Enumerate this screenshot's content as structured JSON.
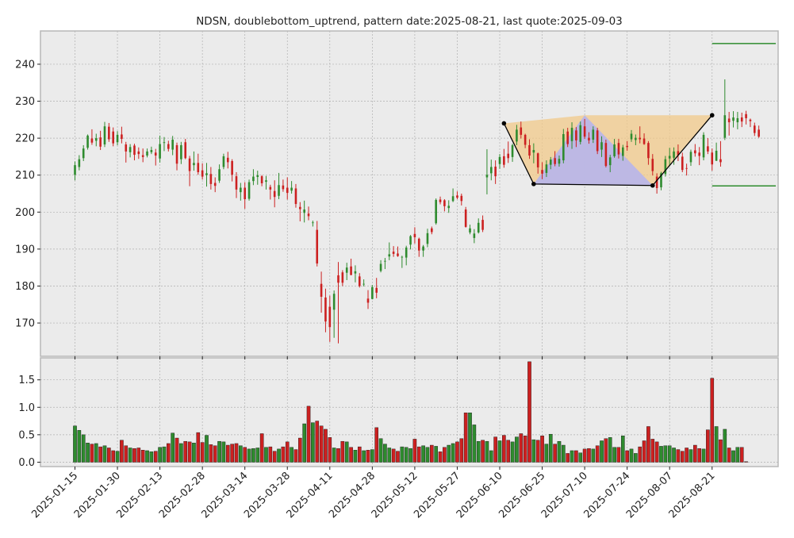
{
  "chart_data": {
    "type": "candlestick",
    "title": "NDSN, doublebottom_uptrend, pattern date:2025-08-21, last quote:2025-09-03",
    "price_axis": {
      "ylim": [
        161,
        249
      ],
      "ticks": [
        170,
        180,
        190,
        200,
        210,
        220,
        230,
        240
      ]
    },
    "volume_axis": {
      "ylim": [
        -0.08,
        1.9
      ],
      "ticks": [
        0.0,
        0.5,
        1.0,
        1.5
      ]
    },
    "x_tick_labels": [
      "2025-01-15",
      "2025-01-30",
      "2025-02-13",
      "2025-02-28",
      "2025-03-14",
      "2025-03-28",
      "2025-04-11",
      "2025-04-28",
      "2025-05-12",
      "2025-05-27",
      "2025-06-10",
      "2025-06-25",
      "2025-07-10",
      "2025-07-24",
      "2025-08-07",
      "2025-08-21"
    ],
    "x_tick_index": [
      0,
      10,
      20,
      30,
      40,
      50,
      60,
      70,
      80,
      90,
      100,
      110,
      120,
      130,
      140,
      150
    ],
    "grid": true,
    "colors": {
      "up": "#2e8b2e",
      "down": "#cc2020",
      "panel_bg": "#ebebeb",
      "grid": "#b0b0b0",
      "pattern_line": "#000000",
      "triangle_orange": "#f2c98a",
      "triangle_blue": "#b4b4f0",
      "level_line": "#0a7a0a"
    },
    "candles": [
      [
        210.1,
        213.7,
        208.6,
        212.7
      ],
      [
        212.2,
        215.4,
        211.3,
        214.3
      ],
      [
        214.6,
        218.1,
        213.8,
        217.2
      ],
      [
        217.4,
        221.0,
        216.9,
        220.7
      ],
      [
        219.9,
        222.4,
        218.2,
        218.8
      ],
      [
        219.3,
        221.2,
        217.8,
        220.0
      ],
      [
        220.2,
        222.0,
        216.8,
        217.7
      ],
      [
        218.3,
        224.4,
        217.6,
        223.2
      ],
      [
        223.1,
        224.1,
        219.0,
        219.7
      ],
      [
        221.8,
        222.9,
        217.8,
        218.6
      ],
      [
        218.9,
        221.9,
        218.1,
        220.9
      ],
      [
        221.0,
        223.1,
        218.6,
        219.8
      ],
      [
        218.3,
        219.0,
        213.4,
        216.4
      ],
      [
        216.2,
        218.4,
        214.8,
        217.6
      ],
      [
        218.0,
        218.5,
        214.0,
        215.5
      ],
      [
        216.4,
        217.5,
        214.4,
        215.7
      ],
      [
        215.4,
        217.2,
        213.5,
        214.9
      ],
      [
        215.3,
        217.2,
        214.8,
        216.4
      ],
      [
        216.2,
        217.7,
        215.7,
        216.8
      ],
      [
        216.1,
        217.1,
        212.6,
        215.3
      ],
      [
        214.5,
        220.7,
        213.4,
        218.4
      ],
      [
        218.7,
        220.3,
        216.5,
        218.9
      ],
      [
        218.4,
        219.3,
        216.4,
        217.1
      ],
      [
        216.9,
        220.6,
        215.4,
        219.6
      ],
      [
        218.1,
        218.8,
        211.3,
        213.1
      ],
      [
        214.3,
        219.0,
        213.0,
        218.1
      ],
      [
        218.9,
        219.8,
        214.3,
        214.6
      ],
      [
        214.5,
        215.2,
        207.0,
        211.1
      ],
      [
        212.7,
        216.4,
        211.2,
        213.3
      ],
      [
        213.3,
        215.8,
        210.1,
        210.8
      ],
      [
        211.3,
        213.2,
        208.8,
        209.6
      ],
      [
        210.0,
        213.3,
        206.9,
        210.5
      ],
      [
        210.3,
        212.2,
        206.1,
        207.6
      ],
      [
        207.9,
        209.4,
        205.4,
        207.1
      ],
      [
        208.5,
        212.9,
        207.9,
        211.6
      ],
      [
        212.2,
        215.8,
        211.6,
        215.1
      ],
      [
        214.7,
        216.3,
        211.8,
        213.5
      ],
      [
        213.8,
        214.3,
        208.3,
        210.1
      ],
      [
        209.7,
        210.8,
        203.8,
        206.1
      ],
      [
        205.4,
        207.9,
        203.1,
        206.6
      ],
      [
        206.6,
        208.1,
        200.9,
        203.5
      ],
      [
        203.6,
        208.8,
        203.1,
        208.1
      ],
      [
        208.4,
        211.6,
        207.3,
        209.6
      ],
      [
        209.5,
        211.2,
        207.4,
        210.0
      ],
      [
        209.7,
        210.0,
        207.0,
        207.8
      ],
      [
        208.2,
        209.8,
        206.1,
        208.6
      ],
      [
        206.8,
        207.4,
        203.4,
        206.1
      ],
      [
        205.7,
        208.6,
        201.3,
        204.1
      ],
      [
        204.4,
        210.6,
        203.5,
        207.3
      ],
      [
        207.2,
        208.8,
        205.5,
        206.2
      ],
      [
        206.6,
        209.4,
        203.4,
        205.2
      ],
      [
        205.8,
        208.4,
        205.0,
        206.6
      ],
      [
        206.4,
        207.6,
        201.2,
        202.2
      ],
      [
        201.4,
        202.7,
        197.5,
        200.8
      ],
      [
        199.8,
        203.1,
        197.2,
        200.7
      ],
      [
        199.6,
        201.5,
        197.8,
        198.9
      ],
      [
        197.1,
        197.7,
        196.1,
        197.2
      ],
      [
        195.2,
        197.6,
        185.3,
        186.1
      ],
      [
        180.6,
        183.9,
        172.8,
        177.1
      ],
      [
        176.9,
        179.3,
        167.5,
        170.4
      ],
      [
        174.4,
        177.4,
        164.9,
        168.9
      ],
      [
        173.6,
        178.8,
        166.0,
        177.9
      ],
      [
        182.9,
        186.5,
        164.5,
        180.9
      ],
      [
        183.7,
        184.3,
        180.0,
        180.9
      ],
      [
        183.6,
        186.3,
        181.6,
        185.0
      ],
      [
        185.3,
        187.4,
        182.9,
        183.0
      ],
      [
        183.4,
        185.6,
        181.0,
        184.0
      ],
      [
        182.6,
        183.5,
        179.6,
        180.0
      ],
      [
        180.6,
        181.8,
        179.9,
        180.6
      ],
      [
        176.6,
        178.9,
        173.8,
        175.5
      ],
      [
        176.5,
        180.3,
        176.4,
        179.7
      ],
      [
        179.5,
        182.2,
        176.7,
        178.2
      ],
      [
        184.1,
        187.0,
        183.7,
        186.0
      ],
      [
        186.7,
        187.6,
        184.6,
        186.8
      ],
      [
        188.0,
        191.8,
        187.0,
        188.6
      ],
      [
        189.3,
        190.8,
        187.9,
        188.7
      ],
      [
        188.8,
        190.7,
        187.9,
        188.1
      ],
      [
        187.8,
        188.2,
        184.9,
        187.9
      ],
      [
        187.7,
        190.9,
        185.6,
        190.4
      ],
      [
        191.2,
        193.8,
        189.9,
        193.5
      ],
      [
        194.1,
        195.9,
        191.5,
        193.2
      ],
      [
        192.8,
        193.1,
        187.9,
        189.6
      ],
      [
        189.6,
        191.1,
        187.9,
        190.7
      ],
      [
        191.4,
        195.5,
        190.5,
        194.3
      ],
      [
        195.6,
        196.1,
        194.0,
        194.6
      ],
      [
        197.0,
        203.7,
        196.6,
        203.3
      ],
      [
        203.4,
        204.2,
        202.1,
        202.7
      ],
      [
        203.2,
        203.5,
        200.2,
        201.6
      ],
      [
        201.1,
        203.2,
        199.8,
        201.7
      ],
      [
        203.0,
        206.4,
        202.7,
        204.3
      ],
      [
        204.5,
        205.6,
        203.5,
        203.9
      ],
      [
        204.4,
        205.0,
        201.8,
        203.0
      ],
      [
        200.7,
        201.4,
        195.8,
        196.0
      ],
      [
        194.5,
        196.6,
        194.0,
        195.6
      ],
      [
        193.0,
        195.4,
        191.6,
        194.2
      ],
      [
        194.5,
        198.3,
        194.2,
        197.1
      ],
      [
        197.9,
        199.1,
        194.6,
        195.2
      ],
      [
        209.4,
        217.0,
        204.8,
        210.1
      ],
      [
        210.5,
        214.2,
        208.6,
        212.2
      ],
      [
        212.3,
        214.0,
        207.6,
        209.7
      ],
      [
        213.0,
        215.7,
        211.7,
        214.9
      ],
      [
        215.1,
        217.1,
        212.0,
        212.8
      ],
      [
        215.8,
        219.1,
        213.3,
        214.6
      ],
      [
        214.9,
        218.5,
        213.6,
        218.1
      ],
      [
        219.1,
        223.6,
        218.1,
        222.3
      ],
      [
        222.9,
        224.5,
        219.9,
        220.9
      ],
      [
        220.9,
        221.2,
        217.3,
        218.2
      ],
      [
        218.1,
        219.7,
        214.4,
        215.3
      ],
      [
        216.1,
        218.6,
        213.2,
        216.8
      ],
      [
        215.9,
        216.1,
        210.4,
        212.1
      ],
      [
        211.4,
        213.5,
        208.9,
        210.4
      ],
      [
        210.6,
        214.0,
        209.5,
        212.9
      ],
      [
        212.8,
        214.9,
        211.6,
        214.2
      ],
      [
        214.6,
        216.5,
        212.4,
        213.0
      ],
      [
        213.1,
        215.3,
        212.3,
        214.4
      ],
      [
        214.0,
        222.5,
        213.2,
        221.1
      ],
      [
        221.8,
        222.8,
        217.6,
        218.4
      ],
      [
        219.2,
        224.3,
        217.1,
        222.8
      ],
      [
        222.1,
        223.0,
        217.6,
        219.4
      ],
      [
        219.0,
        224.5,
        218.3,
        223.5
      ],
      [
        223.2,
        225.2,
        219.8,
        220.4
      ],
      [
        220.1,
        221.6,
        218.5,
        219.4
      ],
      [
        219.6,
        223.2,
        218.7,
        222.3
      ],
      [
        222.1,
        222.8,
        215.7,
        216.5
      ],
      [
        216.9,
        220.5,
        214.9,
        218.9
      ],
      [
        218.7,
        219.6,
        212.1,
        212.5
      ],
      [
        212.7,
        215.5,
        210.8,
        214.8
      ],
      [
        215.1,
        219.8,
        214.7,
        218.3
      ],
      [
        218.7,
        219.8,
        214.5,
        215.6
      ],
      [
        215.2,
        218.2,
        213.9,
        217.5
      ],
      [
        217.9,
        219.2,
        216.6,
        217.6
      ],
      [
        219.7,
        222.2,
        219.0,
        221.2
      ],
      [
        219.5,
        221.0,
        218.1,
        220.1
      ],
      [
        220.1,
        223.2,
        218.6,
        219.7
      ],
      [
        219.9,
        221.3,
        218.2,
        218.4
      ],
      [
        218.7,
        219.2,
        212.8,
        214.6
      ],
      [
        214.4,
        215.7,
        209.9,
        211.1
      ],
      [
        209.6,
        210.5,
        205.0,
        206.5
      ],
      [
        206.7,
        210.9,
        205.9,
        210.5
      ],
      [
        210.3,
        215.2,
        209.6,
        214.3
      ],
      [
        214.5,
        217.4,
        212.4,
        215.2
      ],
      [
        214.7,
        217.5,
        212.8,
        216.4
      ],
      [
        216.5,
        218.3,
        213.8,
        215.4
      ],
      [
        215.0,
        216.1,
        210.8,
        211.4
      ],
      [
        211.9,
        213.1,
        209.9,
        211.8
      ],
      [
        213.5,
        216.9,
        212.5,
        216.3
      ],
      [
        216.7,
        218.4,
        215.0,
        215.9
      ],
      [
        216.1,
        217.6,
        212.7,
        215.2
      ],
      [
        214.8,
        221.6,
        214.0,
        220.9
      ],
      [
        217.8,
        220.0,
        215.7,
        216.4
      ],
      [
        216.1,
        217.2,
        211.2,
        212.9
      ],
      [
        213.9,
        218.8,
        213.8,
        216.6
      ],
      [
        214.3,
        219.2,
        212.3,
        213.5
      ],
      [
        220.1,
        235.9,
        219.5,
        226.2
      ],
      [
        225.3,
        227.1,
        220.7,
        224.3
      ],
      [
        224.7,
        227.3,
        222.9,
        225.6
      ],
      [
        224.3,
        227.1,
        222.4,
        225.4
      ],
      [
        225.6,
        226.9,
        223.0,
        224.5
      ],
      [
        226.5,
        227.4,
        223.7,
        225.4
      ],
      [
        225.0,
        225.3,
        223.0,
        224.6
      ],
      [
        223.4,
        224.2,
        220.6,
        221.4
      ],
      [
        222.3,
        223.4,
        220.1,
        220.4
      ]
    ],
    "volume": [
      0.66,
      0.58,
      0.5,
      0.35,
      0.33,
      0.34,
      0.28,
      0.3,
      0.26,
      0.21,
      0.2,
      0.4,
      0.3,
      0.26,
      0.25,
      0.26,
      0.22,
      0.21,
      0.19,
      0.2,
      0.27,
      0.28,
      0.34,
      0.53,
      0.44,
      0.34,
      0.38,
      0.37,
      0.35,
      0.54,
      0.36,
      0.49,
      0.32,
      0.3,
      0.38,
      0.37,
      0.31,
      0.33,
      0.34,
      0.3,
      0.27,
      0.24,
      0.25,
      0.26,
      0.52,
      0.27,
      0.28,
      0.2,
      0.24,
      0.28,
      0.37,
      0.27,
      0.23,
      0.44,
      0.7,
      1.02,
      0.72,
      0.75,
      0.66,
      0.6,
      0.45,
      0.26,
      0.25,
      0.38,
      0.37,
      0.27,
      0.22,
      0.28,
      0.21,
      0.22,
      0.23,
      0.63,
      0.43,
      0.33,
      0.26,
      0.24,
      0.2,
      0.28,
      0.27,
      0.25,
      0.42,
      0.28,
      0.3,
      0.27,
      0.31,
      0.29,
      0.19,
      0.27,
      0.31,
      0.34,
      0.37,
      0.43,
      0.9,
      0.9,
      0.68,
      0.38,
      0.4,
      0.38,
      0.21,
      0.46,
      0.39,
      0.49,
      0.4,
      0.37,
      0.46,
      0.52,
      0.48,
      1.83,
      0.41,
      0.4,
      0.48,
      0.33,
      0.51,
      0.33,
      0.38,
      0.31,
      0.16,
      0.21,
      0.21,
      0.17,
      0.24,
      0.25,
      0.24,
      0.3,
      0.39,
      0.43,
      0.45,
      0.27,
      0.27,
      0.48,
      0.21,
      0.24,
      0.16,
      0.28,
      0.39,
      0.65,
      0.42,
      0.37,
      0.29,
      0.3,
      0.3,
      0.26,
      0.23,
      0.2,
      0.26,
      0.23,
      0.31,
      0.25,
      0.24,
      0.59,
      1.53,
      0.65,
      0.41,
      0.6,
      0.26,
      0.21,
      0.27,
      0.27,
      0.01
    ],
    "pattern_points": [
      {
        "index": 101,
        "price": 224.0
      },
      {
        "index": 108,
        "price": 207.6
      },
      {
        "index": 136,
        "price": 207.2
      },
      {
        "index": 150,
        "price": 226.2
      }
    ],
    "triangle_orange": [
      [
        101,
        224.0
      ],
      [
        120,
        226.2
      ],
      [
        150,
        226.2
      ],
      [
        136,
        207.2
      ],
      [
        108,
        207.6
      ]
    ],
    "triangle_blue": [
      [
        108,
        207.6
      ],
      [
        120,
        226.2
      ],
      [
        136,
        207.2
      ]
    ],
    "level_lines": [
      {
        "price": 245.6,
        "from_index": 150,
        "to_index": 165
      },
      {
        "price": 207.1,
        "from_index": 150,
        "to_index": 165
      }
    ]
  }
}
